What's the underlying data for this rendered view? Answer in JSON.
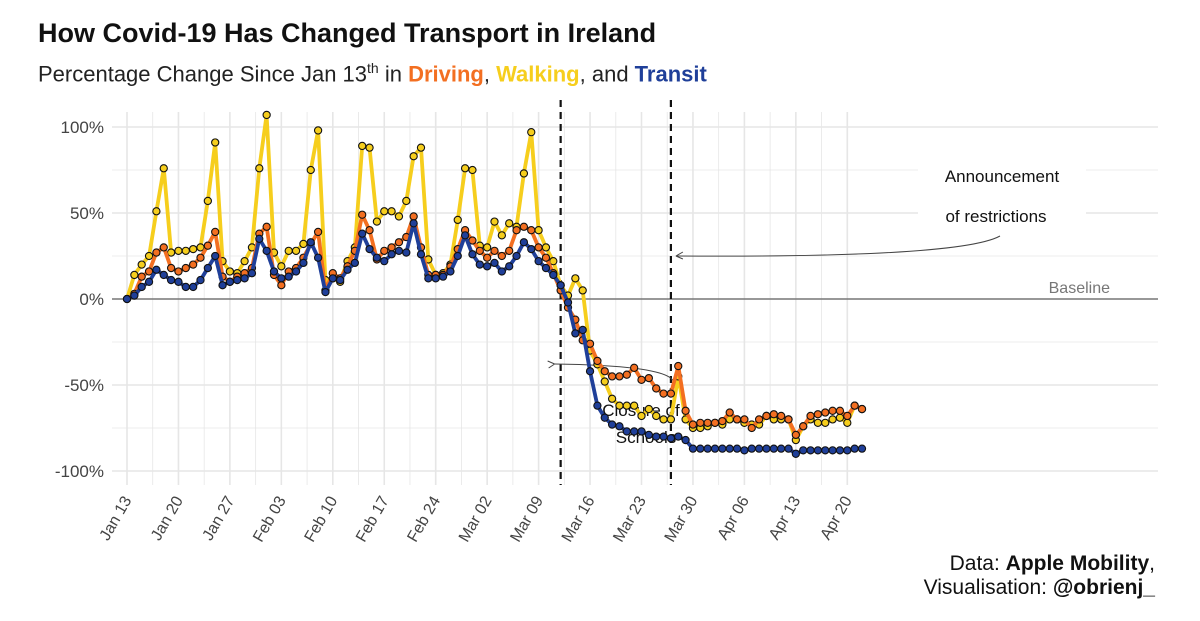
{
  "title": "How Covid-19 Has Changed Transport in Ireland",
  "subtitle": {
    "prefix": "Percentage Change Since Jan 13",
    "superscript": "th",
    "in_word": " in ",
    "driving": "Driving",
    "comma1": ", ",
    "walking": "Walking",
    "and_word": ", and ",
    "transit": "Transit"
  },
  "caption": {
    "line1_prefix": "Data: ",
    "line1_bold": "Apple Mobility",
    "line1_suffix": ",",
    "line2_prefix": "Visualisation: ",
    "line2_bold": "@obrienj_"
  },
  "colors": {
    "driving": "#F36F21",
    "walking": "#F6CE1D",
    "transit": "#1F3F99",
    "baseline": "#777777",
    "grid": "#e6e6e6"
  },
  "chart_data": {
    "type": "line",
    "xlabel": "",
    "ylabel": "",
    "ylim": [
      -100,
      110
    ],
    "yticks": [
      100,
      50,
      0,
      -50,
      -100
    ],
    "ytick_labels": [
      "100%",
      "50%",
      "0%",
      "-50%",
      "-100%"
    ],
    "xtick_labels": [
      "Jan 13",
      "Jan 20",
      "Jan 27",
      "Feb 03",
      "Feb 10",
      "Feb 17",
      "Feb 24",
      "Mar 02",
      "Mar 09",
      "Mar 16",
      "Mar 23",
      "Mar 30",
      "Apr 06",
      "Apr 13",
      "Apr 20"
    ],
    "x_start": "2020-01-13",
    "grid": true,
    "legend": "none",
    "baseline_label": "Baseline",
    "vlines": [
      {
        "date": "2020-03-12",
        "label": "Closure of Schools",
        "label_lines": [
          "Closure of",
          "Schools"
        ]
      },
      {
        "date": "2020-03-27",
        "label": "Announcement of restrictions",
        "label_lines": [
          "Announcement",
          "of restrictions"
        ]
      }
    ],
    "series": [
      {
        "name": "Walking",
        "values": [
          0,
          14,
          20,
          25,
          51,
          76,
          27,
          28,
          28,
          29,
          30,
          57,
          91,
          22,
          16,
          15,
          22,
          30,
          76,
          107,
          27,
          19,
          28,
          28,
          32,
          75,
          98,
          11,
          12,
          10,
          22,
          30,
          89,
          88,
          45,
          51,
          51,
          48,
          57,
          83,
          88,
          23,
          14,
          15,
          20,
          46,
          76,
          75,
          31,
          30,
          45,
          37,
          44,
          42,
          73,
          97,
          40,
          30,
          22,
          8,
          2,
          12,
          5,
          -30,
          -38,
          -48,
          -58,
          -62,
          -62,
          -62,
          -68,
          -64,
          -68,
          -70,
          -70,
          -45,
          -70,
          -75,
          -75,
          -74,
          -72,
          -73,
          -70,
          -70,
          -72,
          -73,
          -73,
          -68,
          -70,
          -70,
          -70,
          -82,
          -74,
          -70,
          -72,
          -72,
          -70,
          -69,
          -72,
          -62,
          -64
        ]
      },
      {
        "name": "Driving",
        "values": [
          0,
          3,
          13,
          16,
          27,
          30,
          18,
          16,
          18,
          20,
          24,
          31,
          39,
          13,
          10,
          13,
          15,
          18,
          38,
          42,
          14,
          8,
          16,
          18,
          24,
          32,
          39,
          5,
          15,
          12,
          19,
          28,
          49,
          40,
          23,
          28,
          30,
          33,
          36,
          48,
          30,
          14,
          14,
          14,
          19,
          29,
          40,
          34,
          28,
          24,
          28,
          25,
          28,
          40,
          42,
          40,
          30,
          24,
          15,
          5,
          -5,
          -12,
          -24,
          -26,
          -36,
          -42,
          -45,
          -45,
          -44,
          -40,
          -47,
          -46,
          -52,
          -55,
          -55,
          -39,
          -65,
          -73,
          -72,
          -72,
          -72,
          -71,
          -66,
          -70,
          -70,
          -75,
          -70,
          -68,
          -67,
          -68,
          -70,
          -79,
          -74,
          -68,
          -67,
          -66,
          -65,
          -65,
          -68,
          -62,
          -64
        ]
      },
      {
        "name": "Transit",
        "values": [
          0,
          2,
          7,
          10,
          17,
          14,
          11,
          10,
          7,
          7,
          11,
          18,
          25,
          8,
          10,
          11,
          12,
          15,
          35,
          28,
          16,
          12,
          13,
          16,
          21,
          33,
          24,
          4,
          12,
          11,
          17,
          21,
          38,
          29,
          24,
          22,
          26,
          28,
          27,
          44,
          26,
          12,
          12,
          13,
          16,
          25,
          37,
          26,
          20,
          19,
          21,
          16,
          19,
          25,
          33,
          29,
          22,
          18,
          14,
          8,
          -2,
          -20,
          -18,
          -42,
          -62,
          -69,
          -73,
          -74,
          -77,
          -77,
          -77,
          -79,
          -80,
          -80,
          -81,
          -80,
          -82,
          -87,
          -87,
          -87,
          -87,
          -87,
          -87,
          -87,
          -88,
          -87,
          -87,
          -87,
          -87,
          -87,
          -87,
          -90,
          -88,
          -88,
          -88,
          -88,
          -88,
          -88,
          -88,
          -87,
          -87
        ]
      }
    ]
  }
}
